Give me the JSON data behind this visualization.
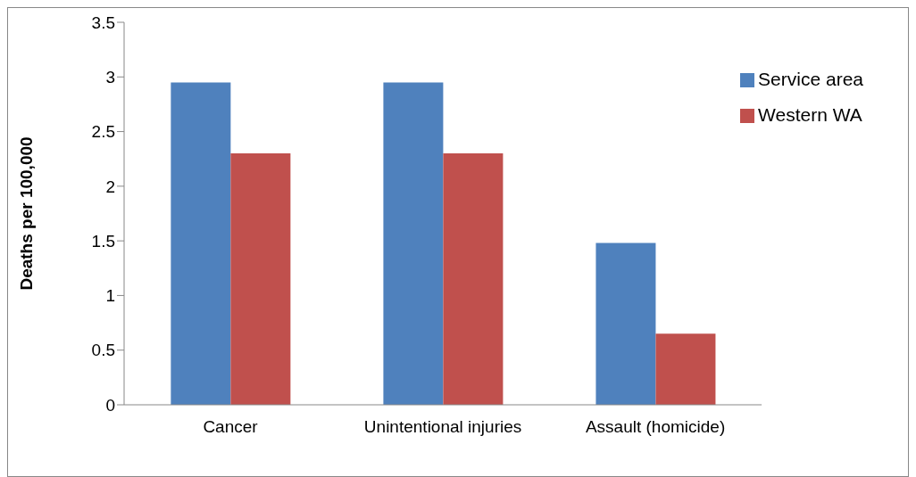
{
  "chart_data": {
    "type": "bar",
    "ylabel": "Deaths per 100,000",
    "categories": [
      "Cancer",
      "Unintentional injuries",
      "Assault (homicide)"
    ],
    "series": [
      {
        "name": "Service area",
        "color": "#4f81bd",
        "values": [
          2.95,
          2.95,
          1.48
        ]
      },
      {
        "name": "Western WA",
        "color": "#c0504d",
        "values": [
          2.3,
          2.3,
          0.65
        ]
      }
    ],
    "ylim": [
      0,
      3.5
    ],
    "yticks": [
      0,
      0.5,
      1,
      1.5,
      2,
      2.5,
      3,
      3.5
    ],
    "grid": false,
    "legend": "top right"
  }
}
